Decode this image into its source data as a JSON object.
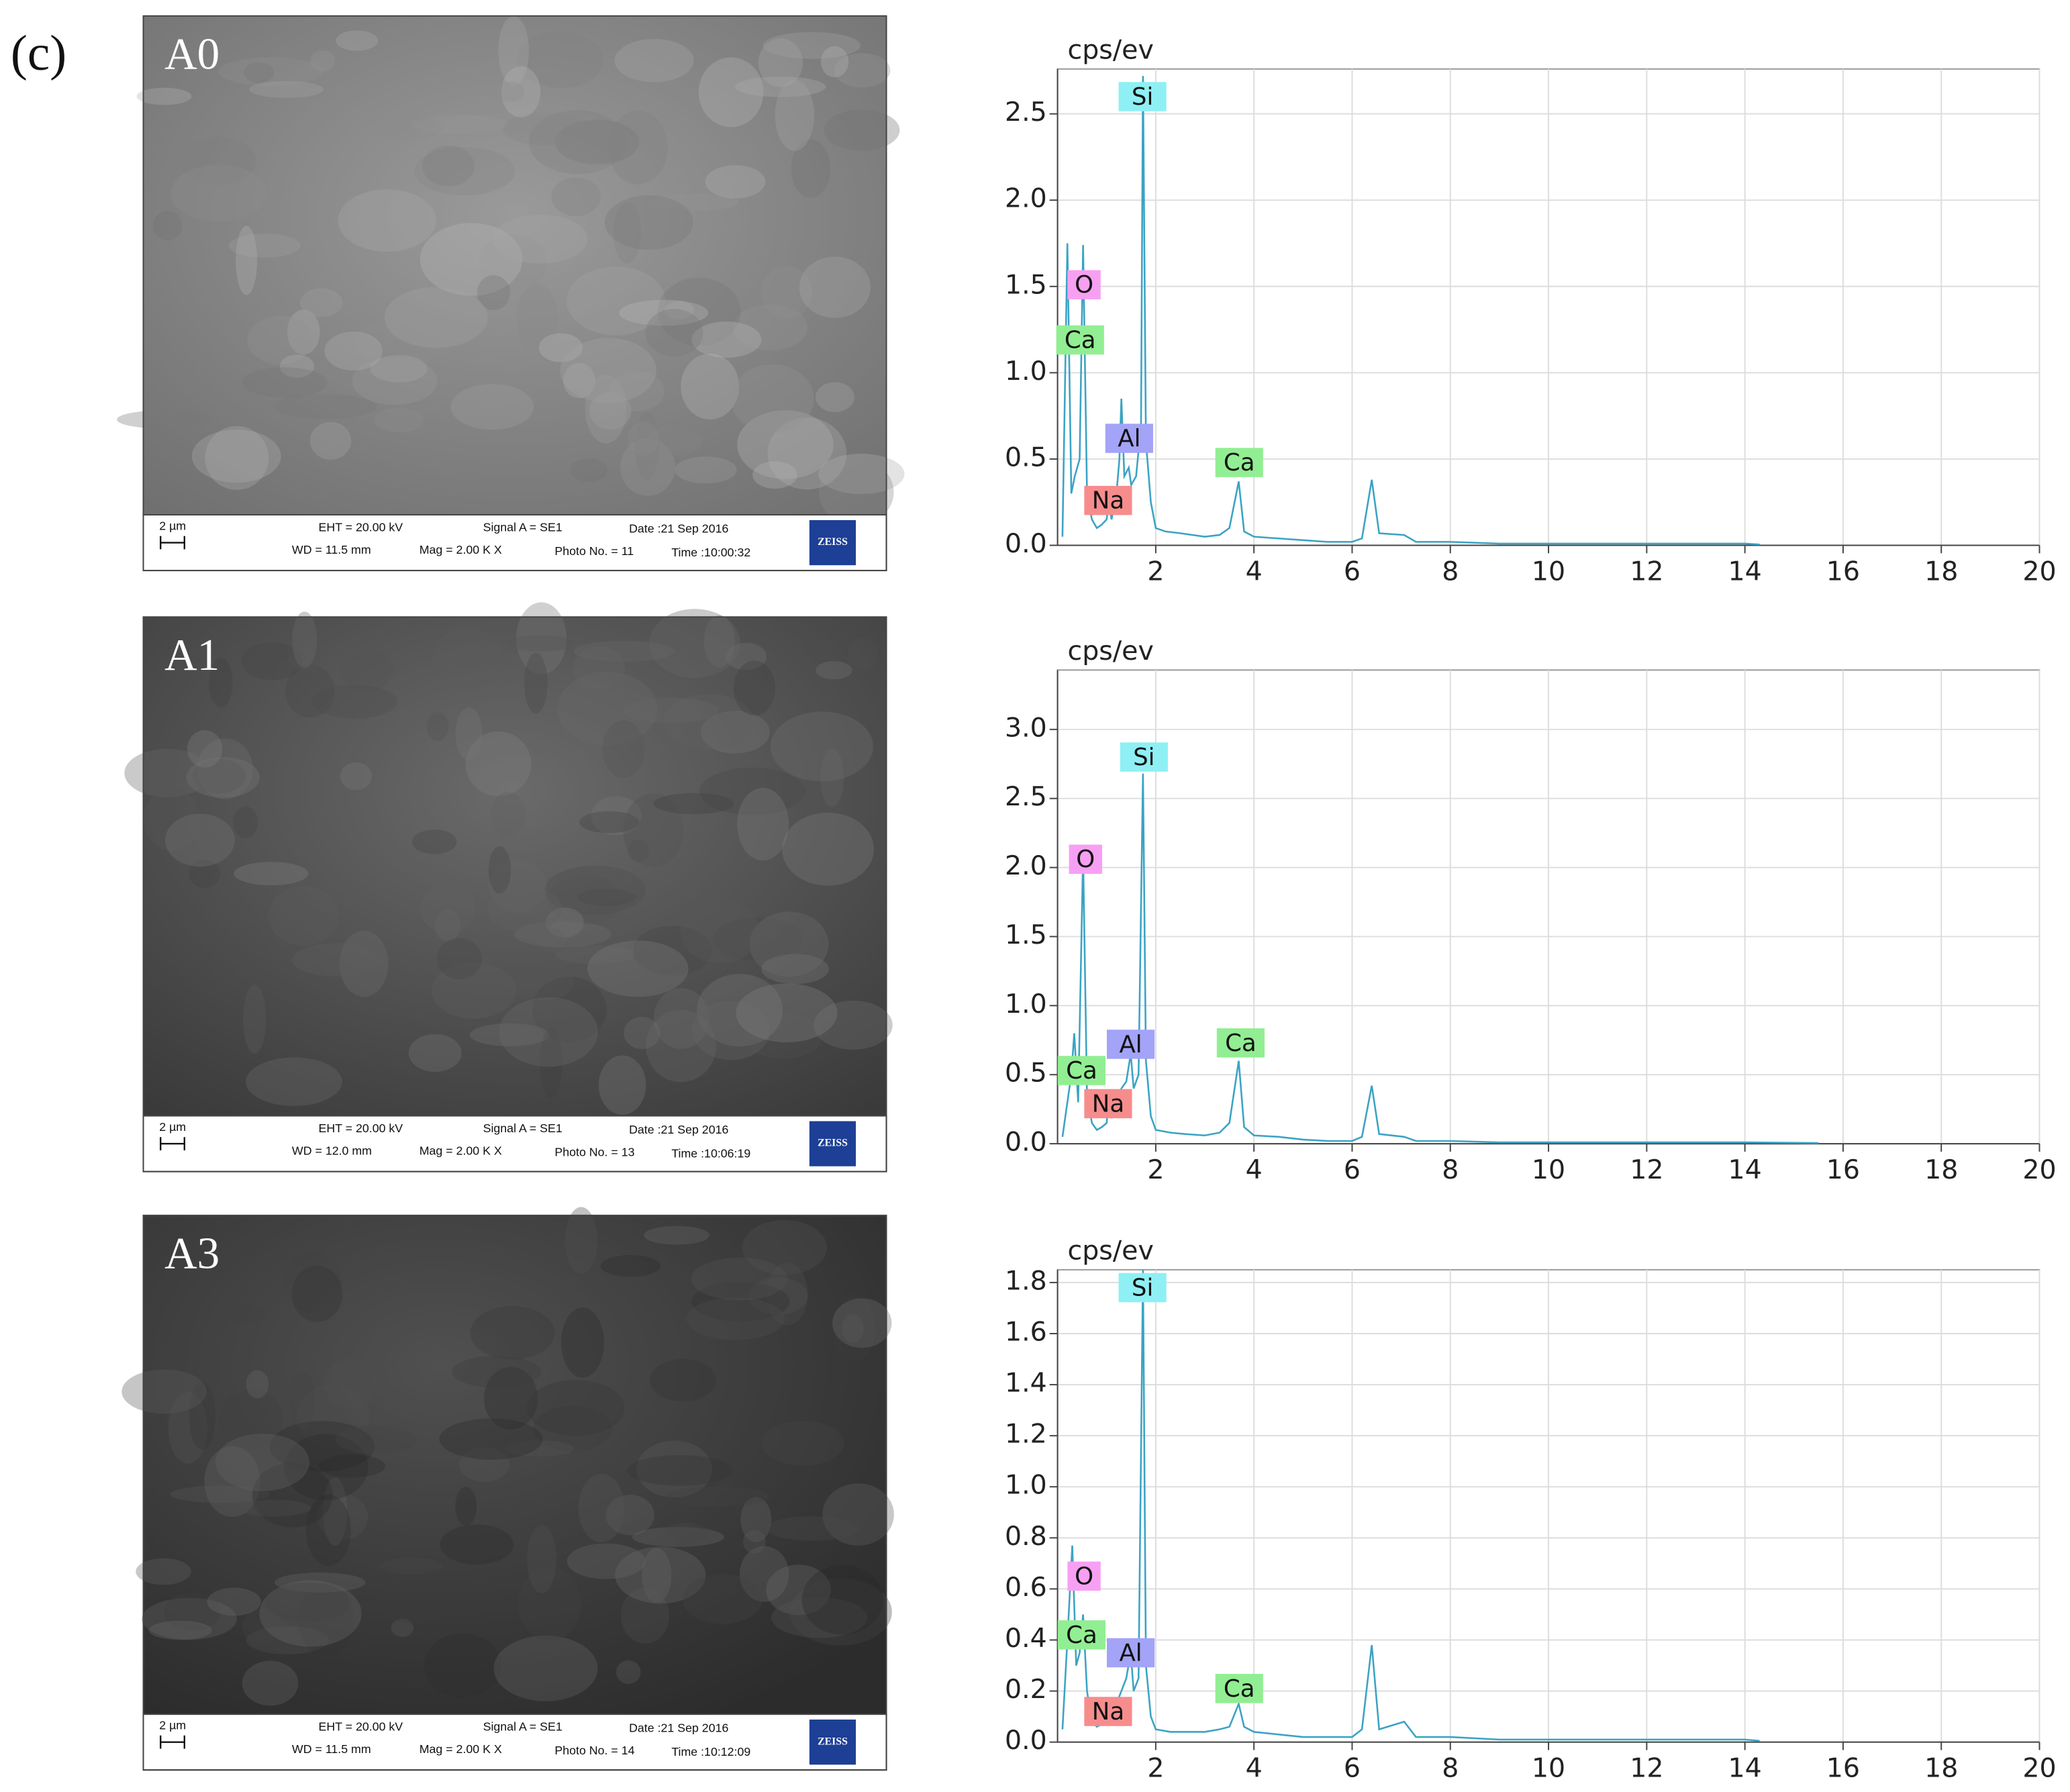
{
  "figure_label": "(c)",
  "sem_images": [
    {
      "label": "A0",
      "scale": "2 µm",
      "eht": "EHT = 20.00 kV",
      "signal": "Signal A = SE1",
      "date": "Date :21 Sep 2016",
      "wd": "WD = 11.5 mm",
      "mag": "Mag =  2.00 K X",
      "photo": "Photo No. = 11",
      "time": "Time :10:00:32",
      "logo": "ZEISS"
    },
    {
      "label": "A1",
      "scale": "2 µm",
      "eht": "EHT = 20.00 kV",
      "signal": "Signal A = SE1",
      "date": "Date :21 Sep 2016",
      "wd": "WD = 12.0 mm",
      "mag": "Mag =  2.00 K X",
      "photo": "Photo No. = 13",
      "time": "Time :10:06:19",
      "logo": "ZEISS"
    },
    {
      "label": "A3",
      "scale": "2 µm",
      "eht": "EHT = 20.00 kV",
      "signal": "Signal A = SE1",
      "date": "Date :21 Sep 2016",
      "wd": "WD = 11.5 mm",
      "mag": "Mag =  2.00 K X",
      "photo": "Photo No. = 14",
      "time": "Time :10:12:09",
      "logo": "ZEISS"
    }
  ],
  "chart_data": [
    {
      "type": "line",
      "y_label": "cps/ev",
      "color": "#3ba3c4",
      "grid": true,
      "x": [
        0.1,
        0.2,
        0.28,
        0.35,
        0.45,
        0.52,
        0.6,
        0.7,
        0.8,
        0.9,
        1.0,
        1.04,
        1.1,
        1.2,
        1.26,
        1.3,
        1.36,
        1.45,
        1.5,
        1.6,
        1.7,
        1.74,
        1.8,
        1.9,
        2.0,
        2.2,
        2.5,
        3.0,
        3.3,
        3.5,
        3.69,
        3.8,
        4.0,
        4.5,
        5.0,
        5.5,
        6.0,
        6.2,
        6.4,
        6.55,
        7.06,
        7.3,
        8,
        9,
        10,
        12,
        14,
        14.3
      ],
      "values": [
        0.05,
        1.75,
        0.3,
        0.4,
        0.5,
        1.74,
        0.3,
        0.15,
        0.1,
        0.12,
        0.15,
        0.25,
        0.15,
        0.3,
        0.5,
        0.85,
        0.4,
        0.45,
        0.35,
        0.4,
        0.7,
        2.72,
        0.6,
        0.25,
        0.1,
        0.08,
        0.07,
        0.05,
        0.06,
        0.1,
        0.37,
        0.08,
        0.05,
        0.04,
        0.03,
        0.02,
        0.02,
        0.04,
        0.38,
        0.07,
        0.06,
        0.02,
        0.02,
        0.01,
        0.01,
        0.01,
        0.01,
        0.005
      ],
      "xlim": [
        0,
        20
      ],
      "xticks": [
        2,
        4,
        6,
        8,
        10,
        12,
        14,
        16,
        18,
        20
      ],
      "ylim": [
        0,
        2.76
      ],
      "yticks": [
        {
          "value": 0,
          "label": "0.0"
        },
        0.5,
        {
          "value": 1,
          "label": "1.0"
        },
        1.5,
        {
          "value": 2,
          "label": "2.0"
        },
        2.5
      ],
      "annotations": [
        {
          "text": "Si",
          "x": 1.73,
          "y": 2.6,
          "color": "#8ef0f4"
        },
        {
          "text": "O",
          "x": 0.54,
          "y": 1.51,
          "color": "#f7a0f3"
        },
        {
          "text": "Ca",
          "x": 0.46,
          "y": 1.19,
          "color": "#92ee92"
        },
        {
          "text": "Al",
          "x": 1.46,
          "y": 0.62,
          "color": "#a3a3f7"
        },
        {
          "text": "Na",
          "x": 1.03,
          "y": 0.26,
          "color": "#f78c8c"
        },
        {
          "text": "Ca",
          "x": 3.7,
          "y": 0.48,
          "color": "#92ee92"
        }
      ]
    },
    {
      "type": "line",
      "y_label": "cps/ev",
      "color": "#3ba3c4",
      "grid": true,
      "x": [
        0.1,
        0.2,
        0.28,
        0.34,
        0.42,
        0.52,
        0.6,
        0.7,
        0.8,
        0.9,
        1.0,
        1.04,
        1.1,
        1.2,
        1.3,
        1.4,
        1.49,
        1.55,
        1.65,
        1.74,
        1.8,
        1.9,
        2.0,
        2.3,
        2.6,
        3.0,
        3.3,
        3.5,
        3.69,
        3.8,
        4.0,
        4.5,
        5.0,
        5.5,
        6.0,
        6.2,
        6.4,
        6.55,
        7.06,
        7.3,
        8,
        9,
        10,
        12,
        14,
        15.5
      ],
      "values": [
        0.05,
        0.3,
        0.5,
        0.8,
        0.3,
        2.09,
        0.35,
        0.15,
        0.1,
        0.12,
        0.15,
        0.3,
        0.2,
        0.3,
        0.4,
        0.45,
        0.65,
        0.4,
        0.5,
        2.68,
        0.6,
        0.2,
        0.1,
        0.08,
        0.07,
        0.06,
        0.08,
        0.15,
        0.6,
        0.12,
        0.06,
        0.05,
        0.03,
        0.02,
        0.02,
        0.05,
        0.42,
        0.07,
        0.05,
        0.02,
        0.02,
        0.01,
        0.01,
        0.01,
        0.01,
        0.005
      ],
      "xlim": [
        0,
        20
      ],
      "xticks": [
        2,
        4,
        6,
        8,
        10,
        12,
        14,
        16,
        18,
        20
      ],
      "ylim": [
        0,
        3.43
      ],
      "yticks": [
        {
          "value": 0,
          "label": "0.0"
        },
        0.5,
        {
          "value": 1,
          "label": "1.0"
        },
        1.5,
        {
          "value": 2,
          "label": "2.0"
        },
        2.5,
        {
          "value": 3,
          "label": "3.0"
        }
      ],
      "annotations": [
        {
          "text": "Si",
          "x": 1.76,
          "y": 2.8,
          "color": "#8ef0f4"
        },
        {
          "text": "O",
          "x": 0.57,
          "y": 2.06,
          "color": "#f7a0f3"
        },
        {
          "text": "Al",
          "x": 1.49,
          "y": 0.72,
          "color": "#a3a3f7"
        },
        {
          "text": "Ca",
          "x": 0.49,
          "y": 0.53,
          "color": "#92ee92"
        },
        {
          "text": "Na",
          "x": 1.03,
          "y": 0.29,
          "color": "#f78c8c"
        },
        {
          "text": "Ca",
          "x": 3.73,
          "y": 0.73,
          "color": "#92ee92"
        }
      ]
    },
    {
      "type": "line",
      "y_label": "cps/ev",
      "color": "#3ba3c4",
      "grid": true,
      "x": [
        0.1,
        0.2,
        0.3,
        0.38,
        0.45,
        0.52,
        0.6,
        0.7,
        0.8,
        0.9,
        1.0,
        1.04,
        1.1,
        1.2,
        1.3,
        1.4,
        1.49,
        1.55,
        1.65,
        1.74,
        1.8,
        1.9,
        2.0,
        2.3,
        2.6,
        3.0,
        3.3,
        3.5,
        3.69,
        3.8,
        4.0,
        4.5,
        5.0,
        5.5,
        6.0,
        6.2,
        6.4,
        6.55,
        7.06,
        7.3,
        8,
        9,
        10,
        12,
        14,
        14.3
      ],
      "values": [
        0.05,
        0.4,
        0.77,
        0.3,
        0.35,
        0.5,
        0.2,
        0.08,
        0.06,
        0.07,
        0.08,
        0.15,
        0.1,
        0.15,
        0.2,
        0.25,
        0.35,
        0.2,
        0.25,
        1.85,
        0.3,
        0.1,
        0.05,
        0.04,
        0.04,
        0.04,
        0.05,
        0.06,
        0.15,
        0.06,
        0.04,
        0.03,
        0.02,
        0.02,
        0.02,
        0.05,
        0.38,
        0.05,
        0.08,
        0.02,
        0.02,
        0.01,
        0.01,
        0.01,
        0.01,
        0.005
      ],
      "xlim": [
        0,
        20
      ],
      "xticks": [
        2,
        4,
        6,
        8,
        10,
        12,
        14,
        16,
        18,
        20
      ],
      "ylim": [
        0,
        1.85
      ],
      "yticks": [
        {
          "value": 0,
          "label": "0.0"
        },
        0.2,
        0.4,
        0.6,
        0.8,
        {
          "value": 1,
          "label": "1.0"
        },
        1.2,
        1.4,
        1.6,
        1.8
      ],
      "annotations": [
        {
          "text": "Si",
          "x": 1.73,
          "y": 1.78,
          "color": "#8ef0f4"
        },
        {
          "text": "O",
          "x": 0.54,
          "y": 0.65,
          "color": "#f7a0f3"
        },
        {
          "text": "Ca",
          "x": 0.49,
          "y": 0.42,
          "color": "#92ee92"
        },
        {
          "text": "Al",
          "x": 1.49,
          "y": 0.35,
          "color": "#a3a3f7"
        },
        {
          "text": "Na",
          "x": 1.03,
          "y": 0.12,
          "color": "#f78c8c"
        },
        {
          "text": "Ca",
          "x": 3.7,
          "y": 0.21,
          "color": "#92ee92"
        }
      ]
    }
  ]
}
